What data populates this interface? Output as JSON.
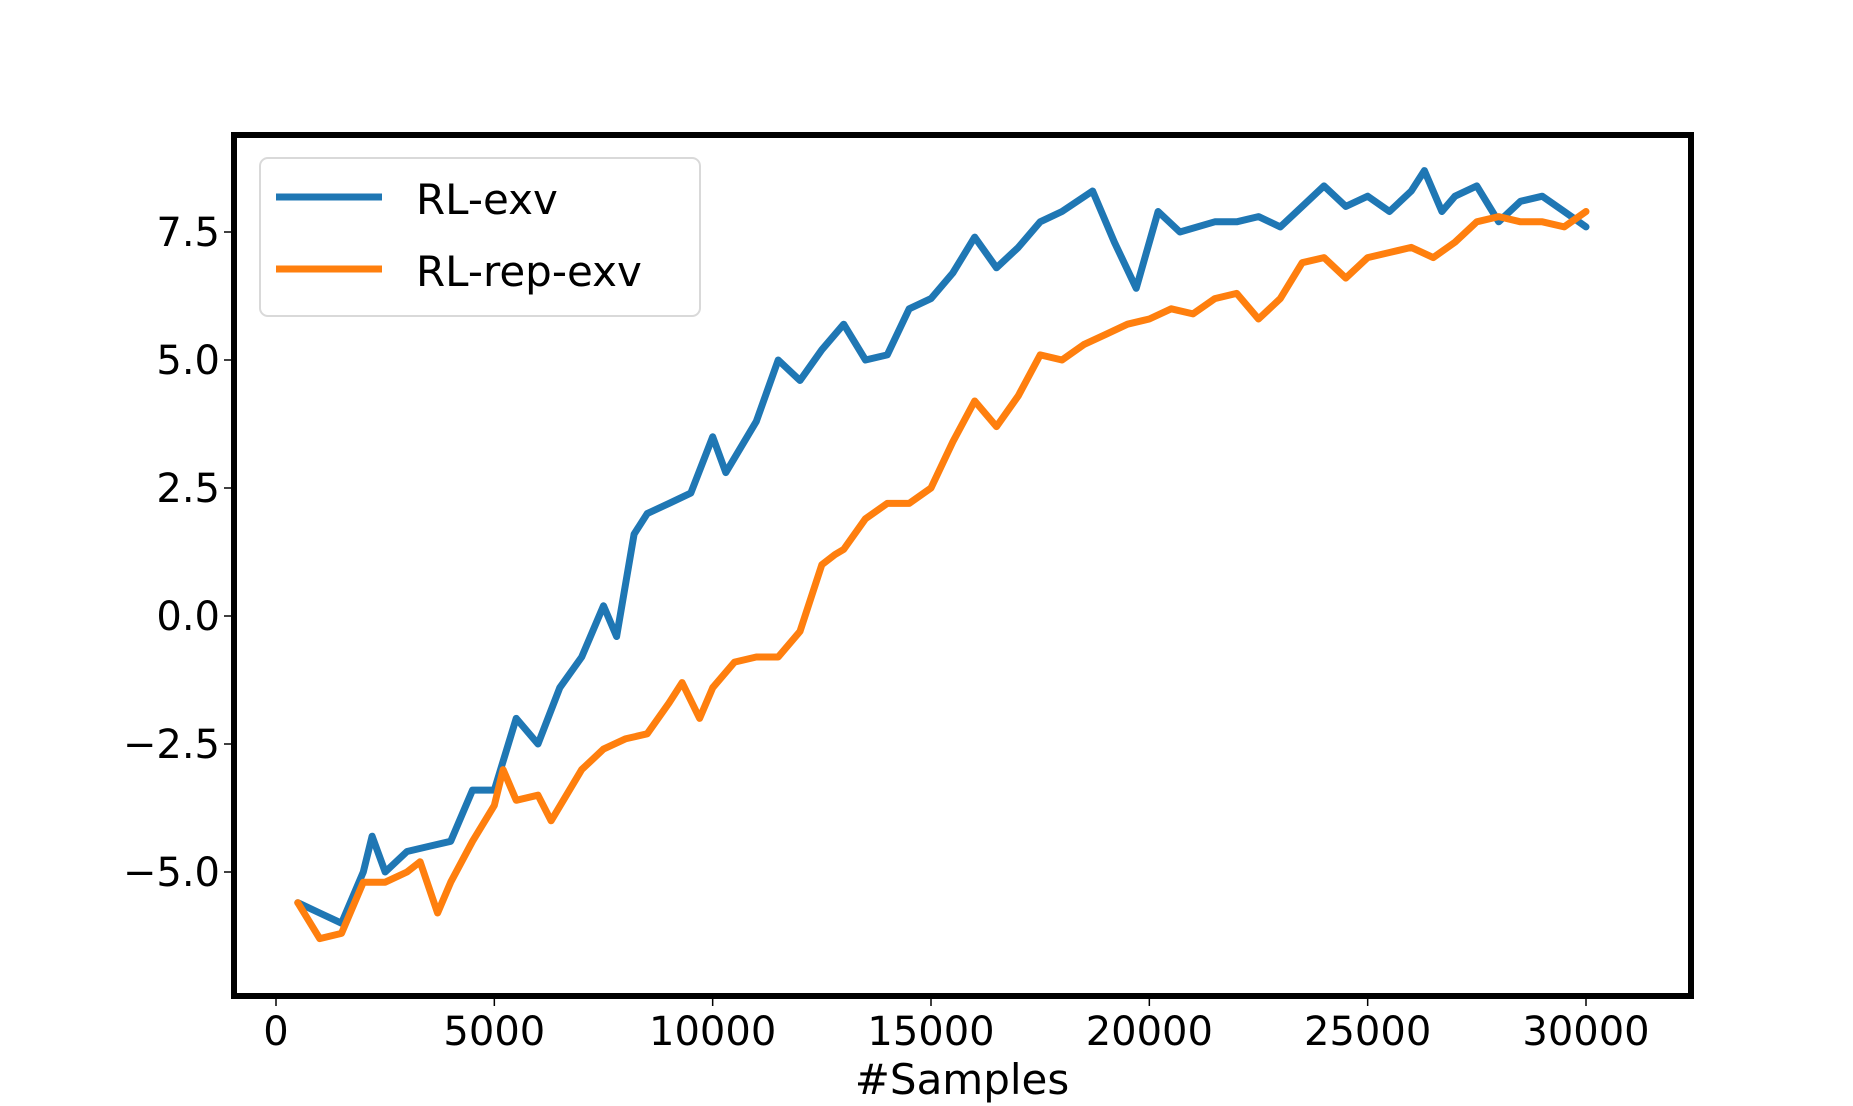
{
  "chart_data": {
    "type": "line",
    "title": "",
    "xlabel": "#Samples",
    "ylabel": "",
    "xlim": [
      -1000,
      31500
    ],
    "ylim": [
      -7.1,
      9.2
    ],
    "xticks": [
      0,
      5000,
      10000,
      15000,
      20000,
      25000,
      30000
    ],
    "xtick_labels": [
      "0",
      "5000",
      "10000",
      "15000",
      "20000",
      "25000",
      "30000"
    ],
    "yticks": [
      -5.0,
      -2.5,
      0.0,
      2.5,
      5.0,
      7.5
    ],
    "ytick_labels": [
      "−5.0",
      "−2.5",
      "0.0",
      "2.5",
      "5.0",
      "7.5"
    ],
    "grid": false,
    "legend_position": "upper left",
    "series": [
      {
        "name": "RL-exv",
        "color": "#1f77b4",
        "x": [
          500,
          1000,
          1500,
          2000,
          2200,
          2500,
          3000,
          3500,
          4000,
          4500,
          5000,
          5500,
          6000,
          6500,
          7000,
          7500,
          7800,
          8200,
          8500,
          9000,
          9500,
          10000,
          10300,
          11000,
          11500,
          12000,
          12500,
          13000,
          13500,
          14000,
          14500,
          15000,
          15500,
          16000,
          16500,
          17000,
          17500,
          18000,
          18700,
          19200,
          19700,
          20200,
          20700,
          21500,
          22000,
          22500,
          23000,
          23500,
          24000,
          24500,
          25000,
          25500,
          26000,
          26300,
          26700,
          27000,
          27500,
          28000,
          28500,
          29000,
          29500,
          30000
        ],
        "values": [
          -5.6,
          -5.8,
          -6.0,
          -5.0,
          -4.3,
          -5.0,
          -4.6,
          -4.5,
          -4.4,
          -3.4,
          -3.4,
          -2.0,
          -2.5,
          -1.4,
          -0.8,
          0.2,
          -0.4,
          1.6,
          2.0,
          2.2,
          2.4,
          3.5,
          2.8,
          3.8,
          5.0,
          4.6,
          5.2,
          5.7,
          5.0,
          5.1,
          6.0,
          6.2,
          6.7,
          7.4,
          6.8,
          7.2,
          7.7,
          7.9,
          8.3,
          7.3,
          6.4,
          7.9,
          7.5,
          7.7,
          7.7,
          7.8,
          7.6,
          8.0,
          8.4,
          8.0,
          8.2,
          7.9,
          8.3,
          8.7,
          7.9,
          8.2,
          8.4,
          7.7,
          8.1,
          8.2,
          7.9,
          7.6
        ]
      },
      {
        "name": "RL-rep-exv",
        "color": "#ff7f0e",
        "x": [
          500,
          1000,
          1500,
          2000,
          2500,
          3000,
          3300,
          3700,
          4000,
          4500,
          5000,
          5200,
          5500,
          6000,
          6300,
          7000,
          7500,
          8000,
          8500,
          9000,
          9300,
          9700,
          10000,
          10500,
          11000,
          11500,
          12000,
          12500,
          12800,
          13000,
          13500,
          14000,
          14500,
          15000,
          15500,
          16000,
          16500,
          17000,
          17500,
          18000,
          18500,
          19000,
          19500,
          20000,
          20500,
          21000,
          21500,
          22000,
          22500,
          23000,
          23500,
          24000,
          24500,
          25000,
          25500,
          26000,
          26500,
          27000,
          27500,
          28000,
          28500,
          29000,
          29500,
          30000
        ],
        "values": [
          -5.6,
          -6.3,
          -6.2,
          -5.2,
          -5.2,
          -5.0,
          -4.8,
          -5.8,
          -5.2,
          -4.4,
          -3.7,
          -3.0,
          -3.6,
          -3.5,
          -4.0,
          -3.0,
          -2.6,
          -2.4,
          -2.3,
          -1.7,
          -1.3,
          -2.0,
          -1.4,
          -0.9,
          -0.8,
          -0.8,
          -0.3,
          1.0,
          1.2,
          1.3,
          1.9,
          2.2,
          2.2,
          2.5,
          3.4,
          4.2,
          3.7,
          4.3,
          5.1,
          5.0,
          5.3,
          5.5,
          5.7,
          5.8,
          6.0,
          5.9,
          6.2,
          6.3,
          5.8,
          6.2,
          6.9,
          7.0,
          6.6,
          7.0,
          7.1,
          7.2,
          7.0,
          7.3,
          7.7,
          7.8,
          7.7,
          7.7,
          7.6,
          7.9
        ]
      }
    ]
  },
  "legend": {
    "items": [
      {
        "label": "RL-exv",
        "color": "#1f77b4"
      },
      {
        "label": "RL-rep-exv",
        "color": "#ff7f0e"
      }
    ]
  },
  "axes": {
    "xlabel": "#Samples"
  }
}
